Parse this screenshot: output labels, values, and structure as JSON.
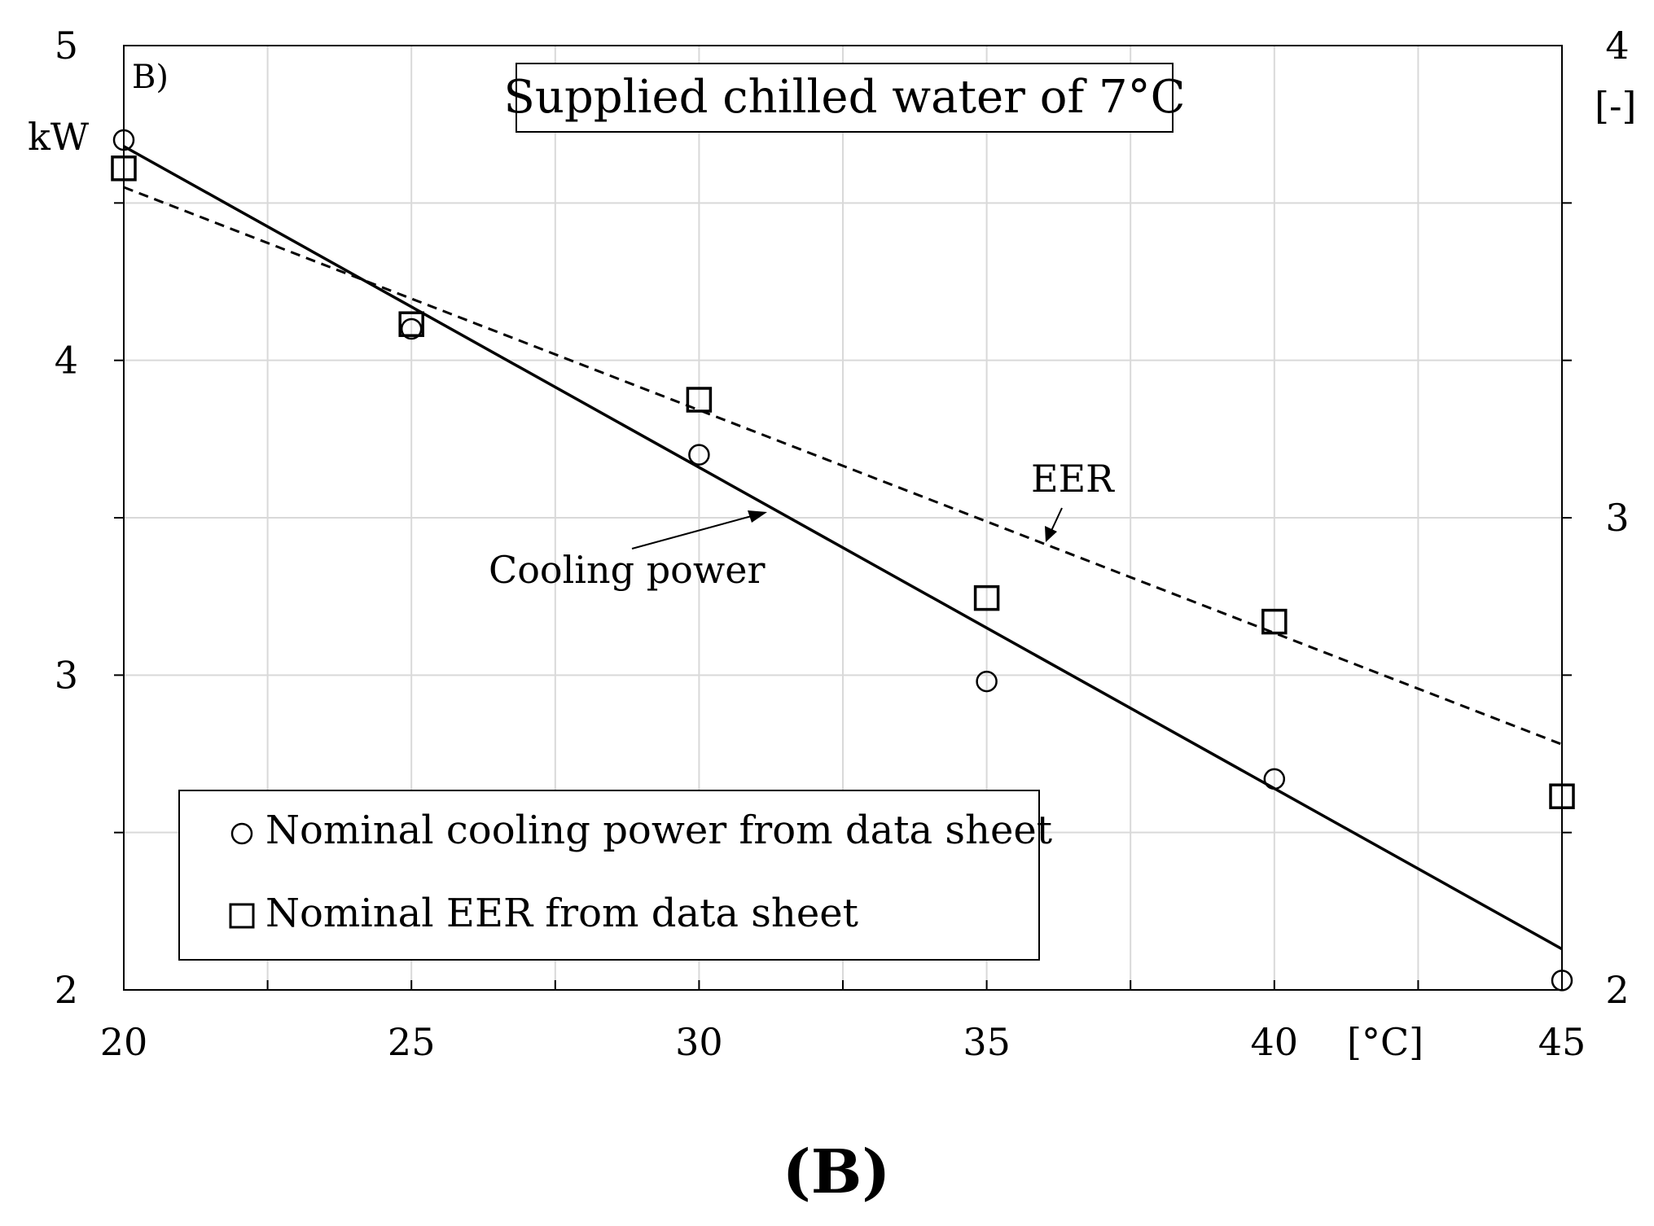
{
  "chart_data": {
    "type": "scatter",
    "title": "Supplied chilled water of 7°C",
    "panel_label": "B)",
    "caption": "(B)",
    "xlabel": "[°C]",
    "ylabel_left": "kW",
    "ylabel_right": "[-]",
    "xlim": [
      20,
      45
    ],
    "ylim_left": [
      2,
      5
    ],
    "ylim_right": [
      2,
      4
    ],
    "x_ticks": [
      "20",
      "25",
      "30",
      "35",
      "40",
      "45"
    ],
    "y_left_ticks": [
      "2",
      "3",
      "4",
      "5"
    ],
    "y_right_ticks": [
      "2",
      "3",
      "4"
    ],
    "grid": true,
    "series": [
      {
        "name": "Nominal cooling power from data sheet",
        "axis": "left",
        "marker": "circle",
        "x": [
          20,
          25,
          30,
          35,
          40,
          45
        ],
        "y": [
          4.7,
          4.1,
          3.7,
          2.98,
          2.67,
          2.03
        ]
      },
      {
        "name": "Nominal EER from data sheet",
        "axis": "right",
        "marker": "square",
        "x": [
          20,
          25,
          30,
          35,
          40,
          45
        ],
        "y": [
          3.74,
          3.41,
          3.25,
          2.83,
          2.78,
          2.41
        ]
      }
    ],
    "trend_lines": [
      {
        "name": "Cooling power",
        "axis": "left",
        "style": "solid",
        "x": [
          20,
          45
        ],
        "y": [
          4.68,
          2.13
        ]
      },
      {
        "name": "EER",
        "axis": "right",
        "style": "dashed",
        "x": [
          20,
          45
        ],
        "y": [
          3.7,
          2.52
        ]
      }
    ],
    "annotations": [
      {
        "text": "Cooling power",
        "points_to": "Cooling power"
      },
      {
        "text": "EER",
        "points_to": "EER"
      }
    ],
    "legend": {
      "position": "bottom-left",
      "entries": [
        "Nominal cooling power from data sheet",
        "Nominal EER from data sheet"
      ]
    }
  }
}
